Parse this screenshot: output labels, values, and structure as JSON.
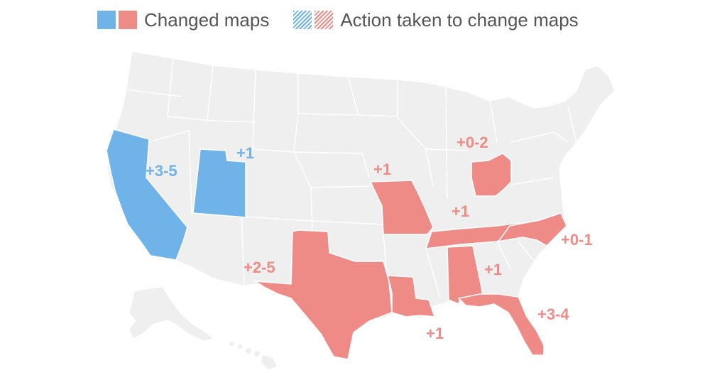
{
  "colors": {
    "blue": "#6fb3e8",
    "red": "#ef8b87",
    "gray": "#efefef",
    "border": "#ffffff",
    "legend_text": "#555555"
  },
  "legend": {
    "changed": {
      "label": "Changed maps",
      "pattern": "solid"
    },
    "action": {
      "label": "Action taken to change maps",
      "pattern": "hatched"
    }
  },
  "map": {
    "region": "United States",
    "states": [
      {
        "name": "California",
        "status": "changed",
        "party": "blue",
        "label": "+3-5"
      },
      {
        "name": "Utah",
        "status": "changed",
        "party": "blue",
        "label": "+1"
      },
      {
        "name": "Texas",
        "status": "changed",
        "party": "red",
        "label": "+2-5"
      },
      {
        "name": "Missouri",
        "status": "changed",
        "party": "red",
        "label": "+1"
      },
      {
        "name": "Ohio",
        "status": "changed",
        "party": "red",
        "label": "+0-2"
      },
      {
        "name": "Tennessee",
        "status": "changed",
        "party": "red",
        "label": "+1"
      },
      {
        "name": "North Carolina",
        "status": "changed",
        "party": "red",
        "label": "+0-1"
      },
      {
        "name": "Alabama",
        "status": "changed",
        "party": "red",
        "label": "+1"
      },
      {
        "name": "Louisiana",
        "status": "changed",
        "party": "red",
        "label": "+1"
      },
      {
        "name": "Florida",
        "status": "changed",
        "party": "red",
        "label": "+3-4"
      }
    ]
  }
}
